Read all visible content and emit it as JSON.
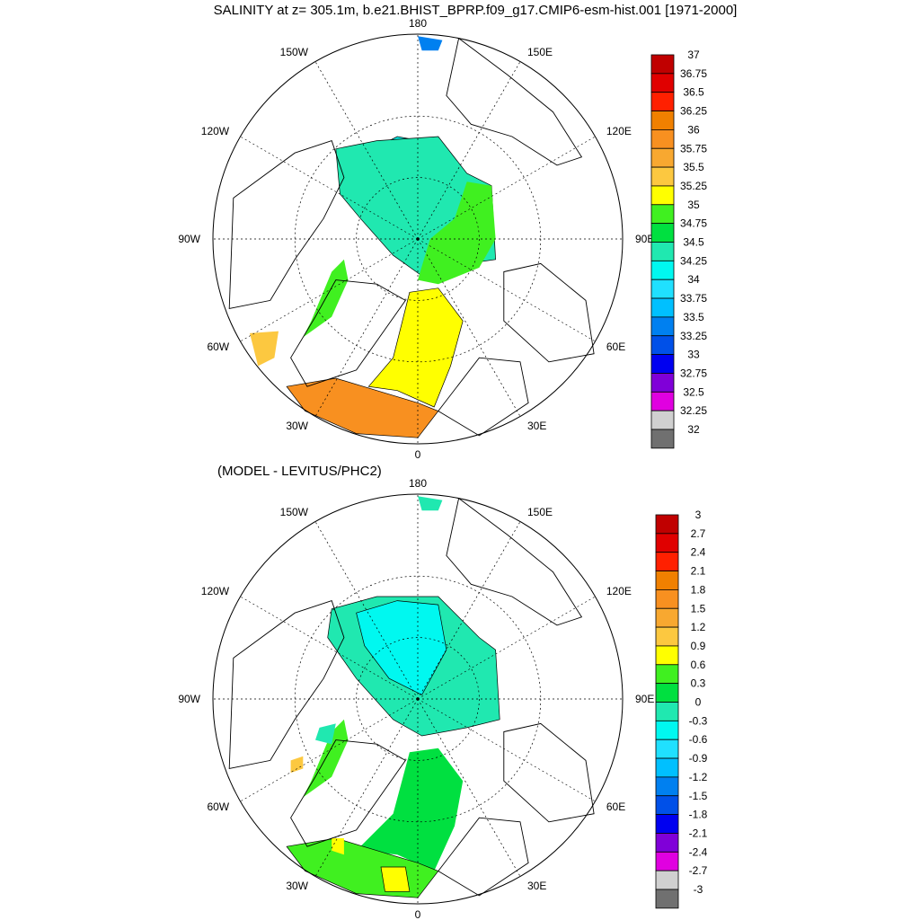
{
  "figure": {
    "title": "SALINITY at z= 305.1m, b.e21.BHIST_BPRP.f09_g17.CMIP6-esm-hist.001 [1971-2000]",
    "subtitle": "(MODEL - LEVITUS/PHC2)"
  },
  "panels": [
    {
      "name": "model-salinity",
      "lon_labels": [
        "180",
        "150E",
        "120E",
        "90E",
        "60E",
        "30E",
        "0",
        "30W",
        "60W",
        "90W",
        "120W",
        "150W"
      ],
      "colorbar": {
        "levels": [
          "37",
          "36.75",
          "36.5",
          "36.25",
          "36",
          "35.75",
          "35.5",
          "35.25",
          "35",
          "34.75",
          "34.5",
          "34.25",
          "34",
          "33.75",
          "33.5",
          "33.25",
          "33",
          "32.75",
          "32.5",
          "32.25",
          "32"
        ],
        "colors": [
          "#c00000",
          "#e00000",
          "#ff2000",
          "#f08000",
          "#f89020",
          "#f8a830",
          "#fcc840",
          "#ffff00",
          "#40f020",
          "#00e040",
          "#20e8b0",
          "#00f8f0",
          "#20e0ff",
          "#00c0ff",
          "#0080f0",
          "#0050e8",
          "#0000f0",
          "#8000d8",
          "#e000e0",
          "#d0d0d0",
          "#707070"
        ]
      },
      "regions": [
        {
          "name": "canada-basin",
          "color": "#00f8f0"
        },
        {
          "name": "eurasian-basin",
          "color": "#20e8b0"
        },
        {
          "name": "barents-shelf",
          "color": "#40f020"
        },
        {
          "name": "labrador-sea",
          "color": "#40f020"
        },
        {
          "name": "norwegian-sea",
          "color": "#ffff00"
        },
        {
          "name": "north-atlantic",
          "color": "#f89020"
        },
        {
          "name": "irminger-sea",
          "color": "#fcc840"
        },
        {
          "name": "bering-patch",
          "color": "#0080f0"
        }
      ]
    },
    {
      "name": "model-minus-obs",
      "lon_labels": [
        "180",
        "150E",
        "120E",
        "90E",
        "60E",
        "30E",
        "0",
        "30W",
        "60W",
        "90W",
        "120W",
        "150W"
      ],
      "colorbar": {
        "levels": [
          "3",
          "2.7",
          "2.4",
          "2.1",
          "1.8",
          "1.5",
          "1.2",
          "0.9",
          "0.6",
          "0.3",
          "0",
          "-0.3",
          "-0.6",
          "-0.9",
          "-1.2",
          "-1.5",
          "-1.8",
          "-2.1",
          "-2.4",
          "-2.7",
          "-3"
        ],
        "colors": [
          "#c00000",
          "#e00000",
          "#ff2000",
          "#f08000",
          "#f89020",
          "#f8a830",
          "#fcc840",
          "#ffff00",
          "#40f020",
          "#00e040",
          "#20e8b0",
          "#00f8f0",
          "#20e0ff",
          "#00c0ff",
          "#0080f0",
          "#0050e8",
          "#0000f0",
          "#8000d8",
          "#e000e0",
          "#d0d0d0",
          "#707070"
        ]
      },
      "regions": [
        {
          "name": "arctic-basin",
          "color": "#20e8b0"
        },
        {
          "name": "canada-basin-core",
          "color": "#00f8f0"
        },
        {
          "name": "nordic-seas",
          "color": "#00e040"
        },
        {
          "name": "north-atlantic",
          "color": "#40f020"
        },
        {
          "name": "labrador-sea",
          "color": "#40f020"
        },
        {
          "name": "baffin-bay",
          "color": "#20e8b0"
        },
        {
          "name": "yellow-patch-west",
          "color": "#ffff00"
        },
        {
          "name": "yellow-patch-east",
          "color": "#ffff00"
        },
        {
          "name": "labrador-patch",
          "color": "#fcc840"
        },
        {
          "name": "bering-patch",
          "color": "#20e8b0"
        }
      ]
    }
  ]
}
